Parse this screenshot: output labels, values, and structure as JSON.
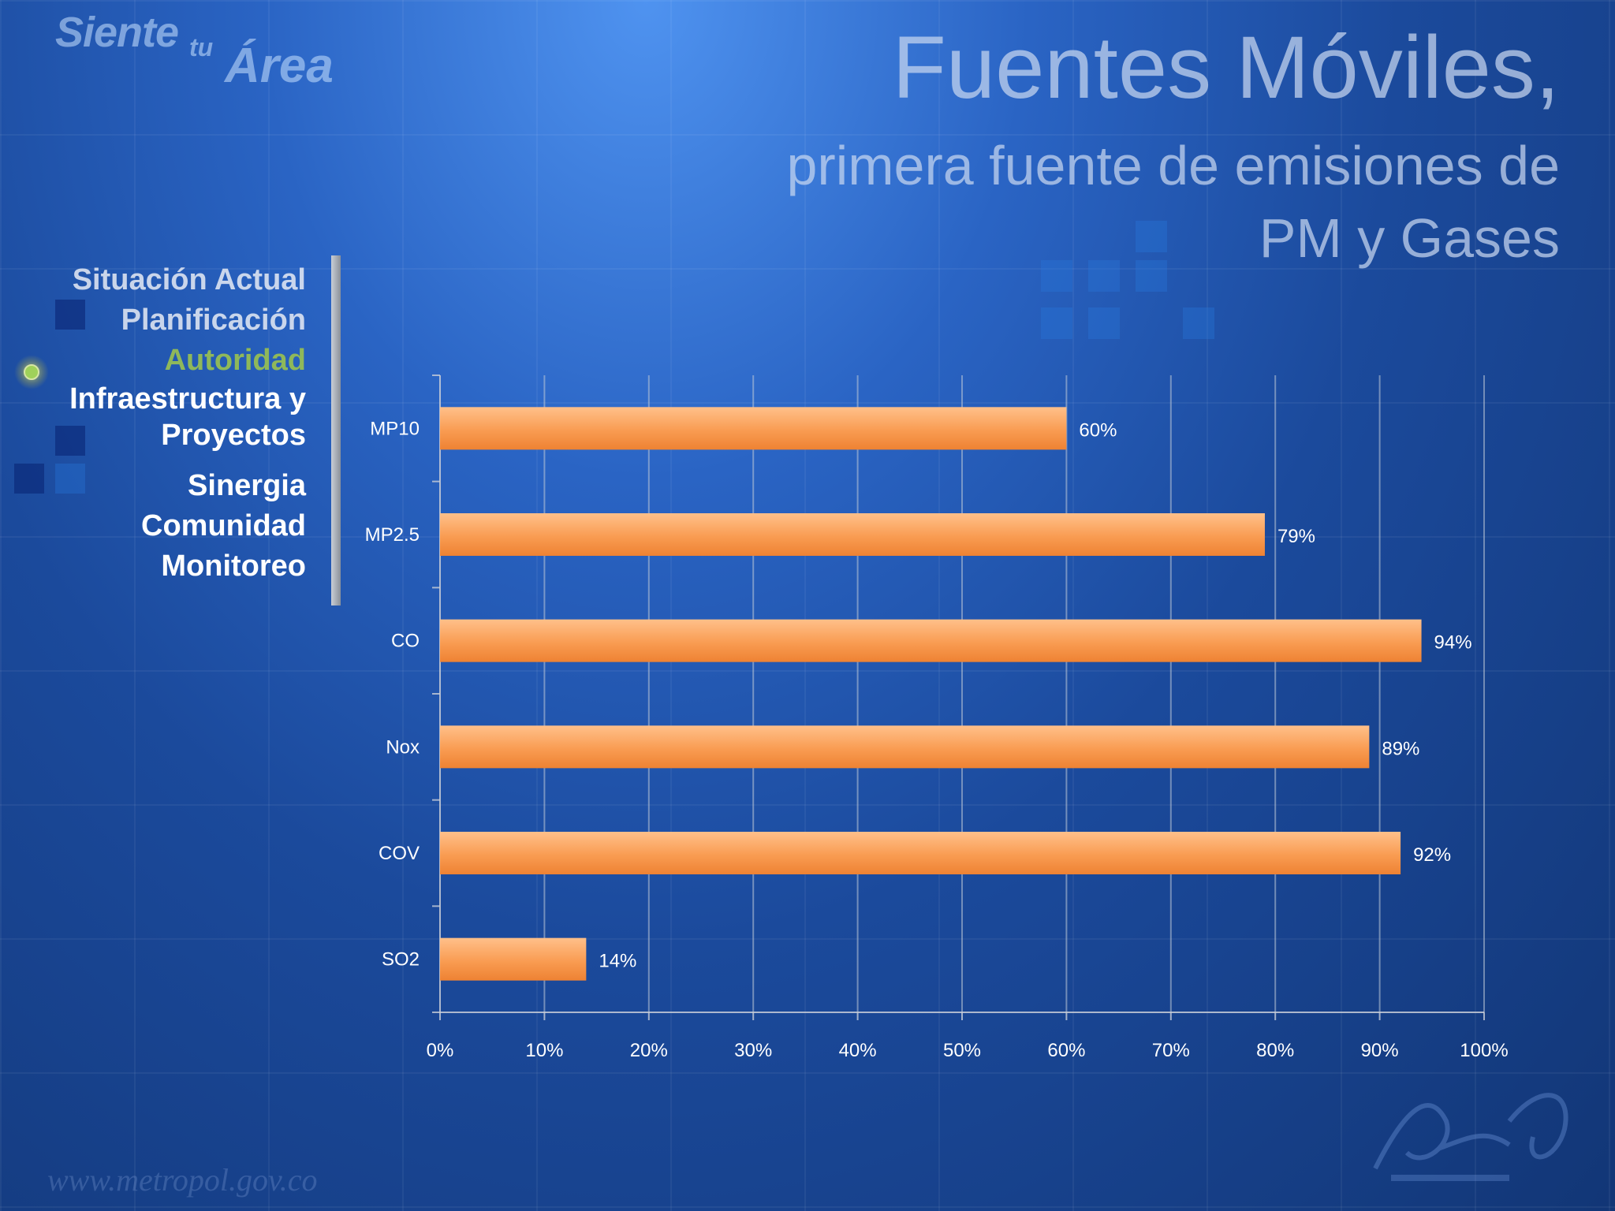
{
  "header": {
    "logo_word1": "Siente",
    "logo_word2": "tu",
    "logo_word3": "Área",
    "title_line1": "Fuentes Móviles,",
    "title_line2": "primera fuente de emisiones de",
    "title_line3": "PM y Gases"
  },
  "menu": {
    "items": [
      {
        "label": "Situación Actual"
      },
      {
        "label": "Planificación"
      },
      {
        "label": "Autoridad"
      },
      {
        "label": "Infraestructura y"
      },
      {
        "label": "Proyectos"
      },
      {
        "label": "Sinergia"
      },
      {
        "label": "Comunidad"
      },
      {
        "label": "Monitoreo"
      }
    ],
    "active_index": 2
  },
  "footer": {
    "watermark": "www.metropol.gov.co"
  },
  "colors": {
    "bar": "#f7964a",
    "bar_light": "#ffc08a",
    "active_menu": "#8fb85a"
  },
  "chart_data": {
    "type": "bar",
    "orientation": "horizontal",
    "categories": [
      "MP10",
      "MP2.5",
      "CO",
      "Nox",
      "COV",
      "SO2"
    ],
    "values": [
      60,
      79,
      94,
      89,
      92,
      14
    ],
    "value_labels": [
      "60%",
      "79%",
      "94%",
      "89%",
      "92%",
      "14%"
    ],
    "xlim": [
      0,
      100
    ],
    "xticks": [
      "0%",
      "10%",
      "20%",
      "30%",
      "40%",
      "50%",
      "60%",
      "70%",
      "80%",
      "90%",
      "100%"
    ],
    "grid": true
  }
}
